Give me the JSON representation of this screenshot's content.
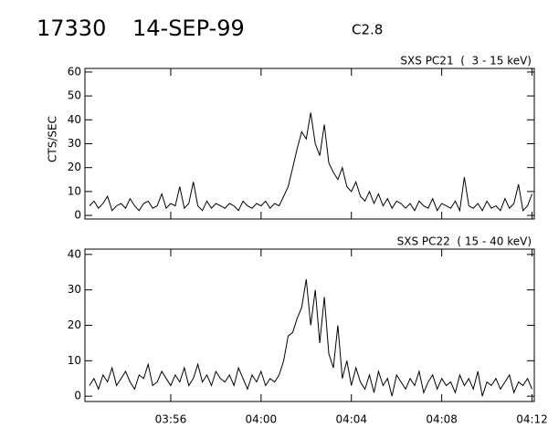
{
  "header": {
    "event": "17330",
    "date": "14-SEP-99",
    "class": "C2.8"
  },
  "chart_data": [
    {
      "type": "line",
      "title": "SXS PC21  (  3 - 15 keV)",
      "ylabel": "CTS/SEC",
      "color": "#000000",
      "xlim": [
        232.2,
        252.1
      ],
      "ylim": [
        -1.5,
        61.5
      ],
      "yticks": [
        0,
        10,
        20,
        30,
        40,
        50,
        60
      ],
      "xticks": [
        {
          "value": 236,
          "label": "03:56"
        },
        {
          "value": 240,
          "label": "04:00"
        },
        {
          "value": 244,
          "label": "04:04"
        },
        {
          "value": 248,
          "label": "04:08"
        },
        {
          "value": 252,
          "label": "04:12"
        }
      ],
      "x": [
        232.4,
        232.6,
        232.8,
        233.0,
        233.2,
        233.4,
        233.6,
        233.8,
        234.0,
        234.2,
        234.4,
        234.6,
        234.8,
        235.0,
        235.2,
        235.4,
        235.6,
        235.8,
        236.0,
        236.2,
        236.4,
        236.6,
        236.8,
        237.0,
        237.2,
        237.4,
        237.6,
        237.8,
        238.0,
        238.2,
        238.4,
        238.6,
        238.8,
        239.0,
        239.2,
        239.4,
        239.6,
        239.8,
        240.0,
        240.2,
        240.4,
        240.6,
        240.8,
        241.0,
        241.2,
        241.4,
        241.6,
        241.8,
        242.0,
        242.2,
        242.4,
        242.6,
        242.8,
        243.0,
        243.2,
        243.4,
        243.6,
        243.8,
        244.0,
        244.2,
        244.4,
        244.6,
        244.8,
        245.0,
        245.2,
        245.4,
        245.6,
        245.8,
        246.0,
        246.2,
        246.4,
        246.6,
        246.8,
        247.0,
        247.2,
        247.4,
        247.6,
        247.8,
        248.0,
        248.2,
        248.4,
        248.6,
        248.8,
        249.0,
        249.2,
        249.4,
        249.6,
        249.8,
        250.0,
        250.2,
        250.4,
        250.6,
        250.8,
        251.0,
        251.2,
        251.4,
        251.6,
        251.8,
        252.0
      ],
      "values": [
        4,
        6,
        3,
        5,
        8,
        2,
        4,
        5,
        3,
        7,
        4,
        2,
        5,
        6,
        3,
        4,
        9,
        3,
        5,
        4,
        12,
        3,
        5,
        14,
        4,
        2,
        6,
        3,
        5,
        4,
        3,
        5,
        4,
        2,
        6,
        4,
        3,
        5,
        4,
        6,
        3,
        5,
        4,
        8,
        12,
        20,
        28,
        35,
        32,
        43,
        30,
        25,
        38,
        22,
        18,
        15,
        20,
        12,
        10,
        14,
        8,
        6,
        10,
        5,
        9,
        4,
        7,
        3,
        6,
        5,
        3,
        5,
        2,
        6,
        4,
        3,
        7,
        2,
        5,
        4,
        3,
        6,
        2,
        16,
        4,
        3,
        5,
        2,
        6,
        3,
        4,
        2,
        7,
        3,
        5,
        13,
        2,
        4,
        9
      ]
    },
    {
      "type": "line",
      "title": "SXS PC22  ( 15 - 40 keV)",
      "color": "#000000",
      "xlim": [
        232.2,
        252.1
      ],
      "ylim": [
        -1.5,
        41.5
      ],
      "yticks": [
        0,
        10,
        20,
        30,
        40
      ],
      "xticks": [
        {
          "value": 236,
          "label": "03:56"
        },
        {
          "value": 240,
          "label": "04:00"
        },
        {
          "value": 244,
          "label": "04:04"
        },
        {
          "value": 248,
          "label": "04:08"
        },
        {
          "value": 252,
          "label": "04:12"
        }
      ],
      "x": [
        232.4,
        232.6,
        232.8,
        233.0,
        233.2,
        233.4,
        233.6,
        233.8,
        234.0,
        234.2,
        234.4,
        234.6,
        234.8,
        235.0,
        235.2,
        235.4,
        235.6,
        235.8,
        236.0,
        236.2,
        236.4,
        236.6,
        236.8,
        237.0,
        237.2,
        237.4,
        237.6,
        237.8,
        238.0,
        238.2,
        238.4,
        238.6,
        238.8,
        239.0,
        239.2,
        239.4,
        239.6,
        239.8,
        240.0,
        240.2,
        240.4,
        240.6,
        240.8,
        241.0,
        241.2,
        241.4,
        241.6,
        241.8,
        242.0,
        242.2,
        242.4,
        242.6,
        242.8,
        243.0,
        243.2,
        243.4,
        243.6,
        243.8,
        244.0,
        244.2,
        244.4,
        244.6,
        244.8,
        245.0,
        245.2,
        245.4,
        245.6,
        245.8,
        246.0,
        246.2,
        246.4,
        246.6,
        246.8,
        247.0,
        247.2,
        247.4,
        247.6,
        247.8,
        248.0,
        248.2,
        248.4,
        248.6,
        248.8,
        249.0,
        249.2,
        249.4,
        249.6,
        249.8,
        250.0,
        250.2,
        250.4,
        250.6,
        250.8,
        251.0,
        251.2,
        251.4,
        251.6,
        251.8,
        252.0
      ],
      "values": [
        3,
        5,
        2,
        6,
        4,
        8,
        3,
        5,
        7,
        4,
        2,
        6,
        5,
        9,
        3,
        4,
        7,
        5,
        3,
        6,
        4,
        8,
        3,
        5,
        9,
        4,
        6,
        3,
        7,
        5,
        4,
        6,
        3,
        8,
        5,
        2,
        6,
        4,
        7,
        3,
        5,
        4,
        6,
        10,
        17,
        18,
        22,
        25,
        33,
        20,
        30,
        15,
        28,
        12,
        8,
        20,
        5,
        10,
        3,
        8,
        4,
        2,
        6,
        1,
        7,
        3,
        5,
        0,
        6,
        4,
        2,
        5,
        3,
        7,
        1,
        4,
        6,
        2,
        5,
        3,
        4,
        1,
        6,
        3,
        5,
        2,
        7,
        0,
        4,
        3,
        5,
        2,
        4,
        6,
        1,
        4,
        3,
        5,
        2
      ]
    }
  ]
}
